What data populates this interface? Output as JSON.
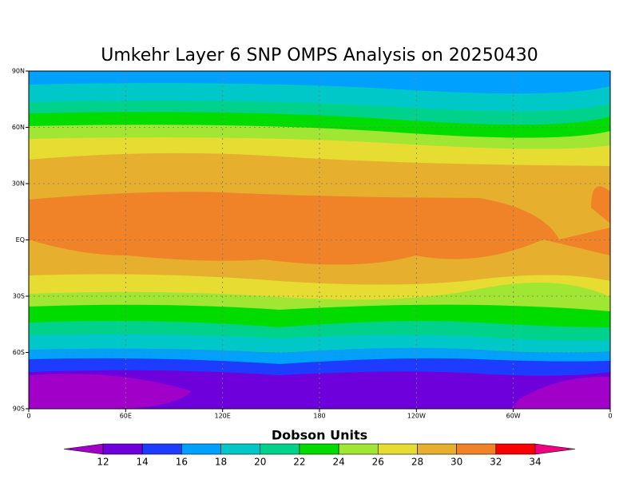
{
  "title": "Umkehr Layer 6 SNP OMPS Analysis on 20250430",
  "map": {
    "lat_labels": [
      "90N",
      "60N",
      "30N",
      "EQ",
      "30S",
      "60S",
      "90S"
    ],
    "lon_labels": [
      "0",
      "60E",
      "120E",
      "180",
      "120W",
      "60W",
      "0"
    ]
  },
  "colorbar": {
    "title": "Dobson Units",
    "levels": [
      12,
      14,
      16,
      18,
      20,
      22,
      24,
      26,
      28,
      30,
      32,
      34
    ],
    "colors": [
      "#a000c8",
      "#6e00dc",
      "#1e3cff",
      "#00a0ff",
      "#00c8c8",
      "#00d28c",
      "#00dc00",
      "#a0e632",
      "#e6dc32",
      "#e6af2d",
      "#f08228",
      "#fa0000",
      "#f00082"
    ]
  }
}
